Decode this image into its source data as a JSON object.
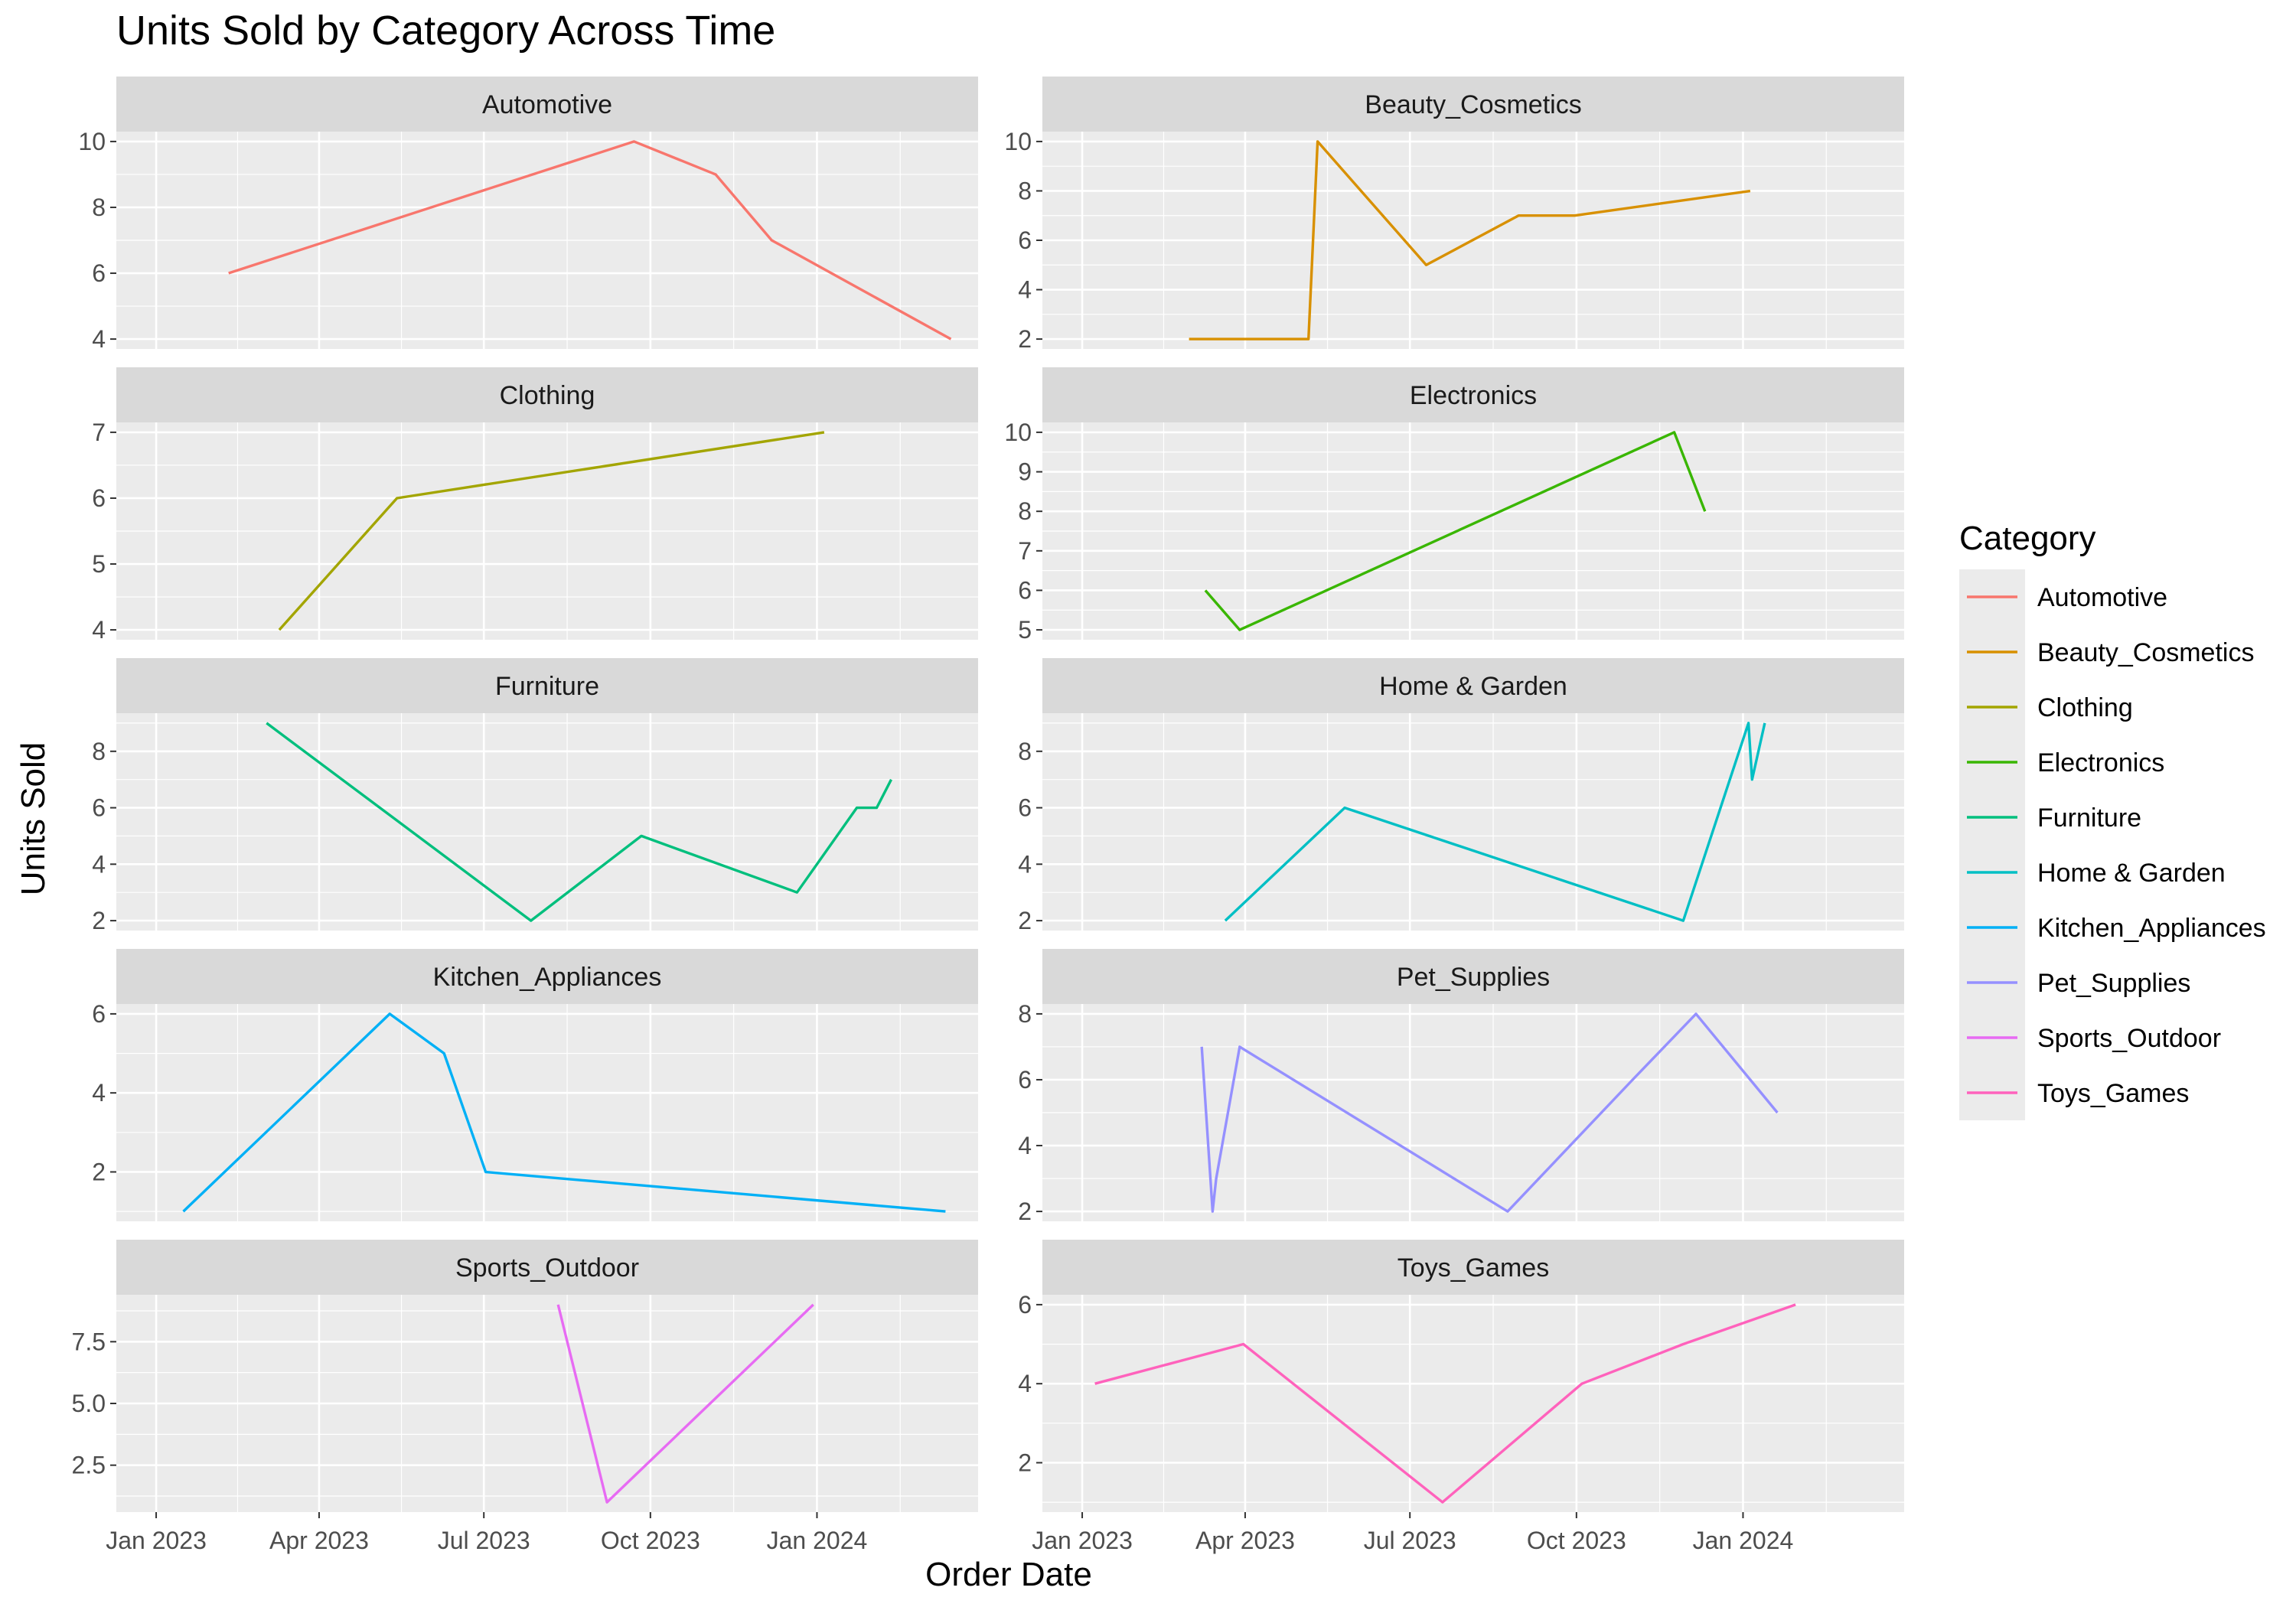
{
  "chart_data": {
    "type": "line",
    "title": "Units Sold by Category Across Time",
    "xlabel": "Order Date",
    "ylabel": "Units Sold",
    "x_ticks": [
      {
        "date": "2023-01-01",
        "label": "Jan 2023"
      },
      {
        "date": "2023-04-01",
        "label": "Apr 2023"
      },
      {
        "date": "2023-07-01",
        "label": "Jul 2023"
      },
      {
        "date": "2023-10-01",
        "label": "Oct 2023"
      },
      {
        "date": "2024-01-01",
        "label": "Jan 2024"
      }
    ],
    "xlim": [
      "2022-12-10",
      "2024-03-30"
    ],
    "grid": true,
    "layout": "facets in 2 columns, free y scales, shared x scale",
    "legend": {
      "title": "Category",
      "position": "right"
    },
    "series": [
      {
        "name": "Automotive",
        "color": "#F8766D",
        "ylim": [
          3.7,
          10.3
        ],
        "yticks": [
          4,
          6,
          8,
          10
        ],
        "ytick_labels": [
          "4",
          "6",
          "8",
          "10"
        ],
        "points": [
          [
            "2023-02-10",
            6
          ],
          [
            "2023-09-22",
            10
          ],
          [
            "2023-11-06",
            9
          ],
          [
            "2023-12-07",
            7
          ],
          [
            "2024-03-15",
            4
          ]
        ]
      },
      {
        "name": "Beauty_Cosmetics",
        "color": "#D89000",
        "ylim": [
          1.6,
          10.4
        ],
        "yticks": [
          2,
          4,
          6,
          8,
          10
        ],
        "ytick_labels": [
          "2",
          "4",
          "6",
          "8",
          "10"
        ],
        "points": [
          [
            "2023-03-01",
            2
          ],
          [
            "2023-05-06",
            2
          ],
          [
            "2023-05-11",
            10
          ],
          [
            "2023-07-10",
            5
          ],
          [
            "2023-08-30",
            7
          ],
          [
            "2023-09-30",
            7
          ],
          [
            "2024-01-05",
            8
          ]
        ]
      },
      {
        "name": "Clothing",
        "color": "#A3A500",
        "ylim": [
          3.85,
          7.15
        ],
        "yticks": [
          4,
          5,
          6,
          7
        ],
        "ytick_labels": [
          "4",
          "5",
          "6",
          "7"
        ],
        "points": [
          [
            "2023-03-10",
            4
          ],
          [
            "2023-05-14",
            6
          ],
          [
            "2024-01-05",
            7
          ]
        ]
      },
      {
        "name": "Electronics",
        "color": "#39B600",
        "ylim": [
          4.75,
          10.25
        ],
        "yticks": [
          5,
          6,
          7,
          8,
          9,
          10
        ],
        "ytick_labels": [
          "5",
          "6",
          "7",
          "8",
          "9",
          "10"
        ],
        "points": [
          [
            "2023-03-10",
            6
          ],
          [
            "2023-03-29",
            5
          ],
          [
            "2023-11-24",
            10
          ],
          [
            "2023-12-11",
            8
          ]
        ]
      },
      {
        "name": "Furniture",
        "color": "#00BF7D",
        "ylim": [
          1.65,
          9.35
        ],
        "yticks": [
          2,
          4,
          6,
          8
        ],
        "ytick_labels": [
          "2",
          "4",
          "6",
          "8"
        ],
        "points": [
          [
            "2023-03-03",
            9
          ],
          [
            "2023-07-27",
            2
          ],
          [
            "2023-09-26",
            5
          ],
          [
            "2023-12-21",
            3
          ],
          [
            "2024-01-23",
            6
          ],
          [
            "2024-02-03",
            6
          ],
          [
            "2024-02-11",
            7
          ]
        ]
      },
      {
        "name": "Home & Garden",
        "color": "#00BFC4",
        "ylim": [
          1.65,
          9.35
        ],
        "yticks": [
          2,
          4,
          6,
          8
        ],
        "ytick_labels": [
          "2",
          "4",
          "6",
          "8"
        ],
        "points": [
          [
            "2023-03-21",
            2
          ],
          [
            "2023-05-26",
            6
          ],
          [
            "2023-11-29",
            2
          ],
          [
            "2024-01-04",
            9
          ],
          [
            "2024-01-06",
            7
          ],
          [
            "2024-01-13",
            9
          ]
        ]
      },
      {
        "name": "Kitchen_Appliances",
        "color": "#00B0F6",
        "ylim": [
          0.75,
          6.25
        ],
        "yticks": [
          2,
          4,
          6
        ],
        "ytick_labels": [
          "2",
          "4",
          "6"
        ],
        "points": [
          [
            "2023-01-16",
            1
          ],
          [
            "2023-05-10",
            6
          ],
          [
            "2023-06-09",
            5
          ],
          [
            "2023-07-02",
            2
          ],
          [
            "2024-03-12",
            1
          ]
        ]
      },
      {
        "name": "Pet_Supplies",
        "color": "#9590FF",
        "ylim": [
          1.7,
          8.3
        ],
        "yticks": [
          2,
          4,
          6,
          8
        ],
        "ytick_labels": [
          "2",
          "4",
          "6",
          "8"
        ],
        "points": [
          [
            "2023-03-08",
            7
          ],
          [
            "2023-03-14",
            2
          ],
          [
            "2023-03-16",
            3
          ],
          [
            "2023-03-29",
            7
          ],
          [
            "2023-08-24",
            2
          ],
          [
            "2023-11-01",
            6
          ],
          [
            "2023-12-06",
            8
          ],
          [
            "2024-01-20",
            5
          ]
        ]
      },
      {
        "name": "Sports_Outdoor",
        "color": "#E76BF3",
        "ylim": [
          0.6,
          9.4
        ],
        "yticks": [
          2.5,
          5.0,
          7.5
        ],
        "ytick_labels": [
          "2.5",
          "5.0",
          "7.5"
        ],
        "points": [
          [
            "2023-08-11",
            9
          ],
          [
            "2023-09-07",
            1
          ],
          [
            "2023-12-30",
            9
          ]
        ]
      },
      {
        "name": "Toys_Games",
        "color": "#FF62BC",
        "ylim": [
          0.75,
          6.25
        ],
        "yticks": [
          2,
          4,
          6
        ],
        "ytick_labels": [
          "2",
          "4",
          "6"
        ],
        "points": [
          [
            "2023-01-08",
            4
          ],
          [
            "2023-03-31",
            5
          ],
          [
            "2023-07-19",
            1
          ],
          [
            "2023-10-04",
            4
          ],
          [
            "2023-11-29",
            5
          ],
          [
            "2024-01-30",
            6
          ]
        ]
      }
    ]
  }
}
